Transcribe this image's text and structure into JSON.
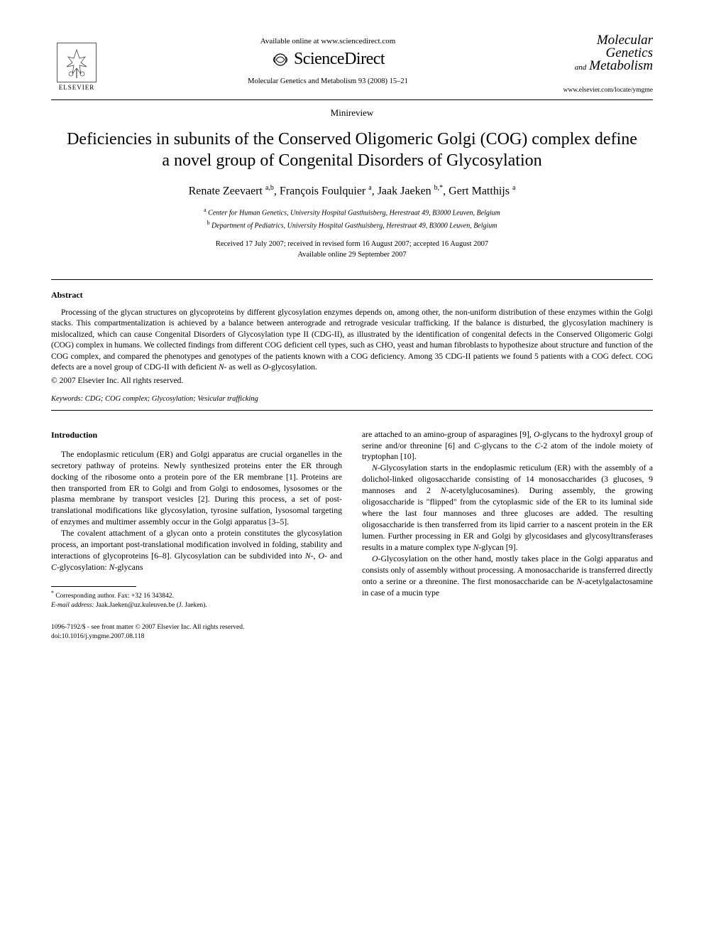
{
  "header": {
    "available_online": "Available online at www.sciencedirect.com",
    "sciencedirect": "ScienceDirect",
    "elsevier": "ELSEVIER",
    "citation": "Molecular Genetics and Metabolism 93 (2008) 15–21",
    "journal_logo_line1": "Molecular Genetics",
    "journal_logo_and": "and",
    "journal_logo_line2": "Metabolism",
    "journal_url": "www.elsevier.com/locate/ymgme"
  },
  "article": {
    "section_label": "Minireview",
    "title": "Deficiencies in subunits of the Conserved Oligomeric Golgi (COG) complex define a novel group of Congenital Disorders of Glycosylation",
    "authors_html": "Renate Zeevaert <sup>a,b</sup>, François Foulquier <sup>a</sup>, Jaak Jaeken <sup>b,*</sup>, Gert Matthijs <sup>a</sup>",
    "affil_a": "Center for Human Genetics, University Hospital Gasthuisberg, Herestraat 49, B3000 Leuven, Belgium",
    "affil_b": "Department of Pediatrics, University Hospital Gasthuisberg, Herestraat 49, B3000 Leuven, Belgium",
    "dates_line1": "Received 17 July 2007; received in revised form 16 August 2007; accepted 16 August 2007",
    "dates_line2": "Available online 29 September 2007"
  },
  "abstract": {
    "heading": "Abstract",
    "text": "Processing of the glycan structures on glycoproteins by different glycosylation enzymes depends on, among other, the non-uniform distribution of these enzymes within the Golgi stacks. This compartmentalization is achieved by a balance between anterograde and retrograde vesicular trafficking. If the balance is disturbed, the glycosylation machinery is mislocalized, which can cause Congenital Disorders of Glycosylation type II (CDG-II), as illustrated by the identification of congenital defects in the Conserved Oligomeric Golgi (COG) complex in humans. We collected findings from different COG deficient cell types, such as CHO, yeast and human fibroblasts to hypothesize about structure and function of the COG complex, and compared the phenotypes and genotypes of the patients known with a COG deficiency. Among 35 CDG-II patients we found 5 patients with a COG defect. COG defects are a novel group of CDG-II with deficient N- as well as O-glycosylation.",
    "copyright": "© 2007 Elsevier Inc. All rights reserved.",
    "keywords_label": "Keywords:",
    "keywords": "CDG; COG complex; Glycosylation; Vesicular trafficking"
  },
  "body": {
    "intro_heading": "Introduction",
    "left_p1": "The endoplasmic reticulum (ER) and Golgi apparatus are crucial organelles in the secretory pathway of proteins. Newly synthesized proteins enter the ER through docking of the ribosome onto a protein pore of the ER membrane [1]. Proteins are then transported from ER to Golgi and from Golgi to endosomes, lysosomes or the plasma membrane by transport vesicles [2]. During this process, a set of post-translational modifications like glycosylation, tyrosine sulfation, lysosomal targeting of enzymes and multimer assembly occur in the Golgi apparatus [3–5].",
    "left_p2": "The covalent attachment of a glycan onto a protein constitutes the glycosylation process, an important post-translational modification involved in folding, stability and interactions of glycoproteins [6–8]. Glycosylation can be subdivided into N-, O- and C-glycosylation: N-glycans",
    "right_p1": "are attached to an amino-group of asparagines [9], O-glycans to the hydroxyl group of serine and/or threonine [6] and C-glycans to the C-2 atom of the indole moiety of tryptophan [10].",
    "right_p2": "N-Glycosylation starts in the endoplasmic reticulum (ER) with the assembly of a dolichol-linked oligosaccharide consisting of 14 monosaccharides (3 glucoses, 9 mannoses and 2 N-acetylglucosamines). During assembly, the growing oligosaccharide is \"flipped\" from the cytoplasmic side of the ER to its luminal side where the last four mannoses and three glucoses are added. The resulting oligosaccharide is then transferred from its lipid carrier to a nascent protein in the ER lumen. Further processing in ER and Golgi by glycosidases and glycosyltransferases results in a mature complex type N-glycan [9].",
    "right_p3": "O-Glycosylation on the other hand, mostly takes place in the Golgi apparatus and consists only of assembly without processing. A monosaccharide is transferred directly onto a serine or a threonine. The first monosaccharide can be N-acetylgalactosamine in case of a mucin type"
  },
  "footnote": {
    "corr": "Corresponding author. Fax: +32 16 343842.",
    "email_label": "E-mail address:",
    "email": "Jaak.Jaeken@uz.kuleuven.be",
    "email_name": "(J. Jaeken)."
  },
  "footer": {
    "issn": "1096-7192/$ - see front matter © 2007 Elsevier Inc. All rights reserved.",
    "doi": "doi:10.1016/j.ymgme.2007.08.118"
  },
  "colors": {
    "text": "#000000",
    "background": "#ffffff",
    "rule": "#000000"
  }
}
